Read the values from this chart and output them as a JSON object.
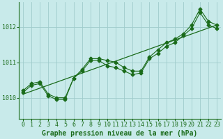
{
  "title": "Graphe pression niveau de la mer (hPa)",
  "bg_color": "#c8eaea",
  "grid_color": "#a0cccc",
  "line_color": "#1a6b1a",
  "xlim": [
    -0.5,
    23.5
  ],
  "ylim": [
    1009.4,
    1012.7
  ],
  "yticks": [
    1010,
    1011,
    1012
  ],
  "xticks": [
    0,
    1,
    2,
    3,
    4,
    5,
    6,
    7,
    8,
    9,
    10,
    11,
    12,
    13,
    14,
    15,
    16,
    17,
    18,
    19,
    20,
    21,
    22,
    23
  ],
  "series1_x": [
    0,
    1,
    2,
    3,
    4,
    5,
    6,
    7,
    8,
    9,
    10,
    11,
    12,
    13,
    14,
    15,
    16,
    17,
    18,
    19,
    20,
    21,
    22,
    23
  ],
  "series1_y": [
    1010.2,
    1010.4,
    1010.45,
    1010.1,
    1010.0,
    1010.0,
    1010.55,
    1010.8,
    1011.1,
    1011.1,
    1011.05,
    1011.0,
    1010.85,
    1010.75,
    1010.75,
    1011.15,
    1011.35,
    1011.55,
    1011.65,
    1011.8,
    1012.05,
    1012.5,
    1012.15,
    1012.05
  ],
  "series2_x": [
    0,
    1,
    2,
    3,
    4,
    5,
    6,
    7,
    8,
    9,
    10,
    11,
    12,
    13,
    14,
    15,
    16,
    17,
    18,
    19,
    20,
    21,
    22,
    23
  ],
  "series2_y": [
    1010.15,
    1010.35,
    1010.4,
    1010.05,
    1009.95,
    1009.95,
    1010.55,
    1010.75,
    1011.05,
    1011.05,
    1010.9,
    1010.85,
    1010.75,
    1010.65,
    1010.7,
    1011.1,
    1011.25,
    1011.45,
    1011.55,
    1011.75,
    1011.95,
    1012.4,
    1012.05,
    1011.95
  ],
  "trend_x": [
    0,
    23
  ],
  "trend_y": [
    1010.1,
    1012.05
  ],
  "marker": "D",
  "marker_size": 2.5,
  "title_fontsize": 7,
  "tick_fontsize": 6
}
